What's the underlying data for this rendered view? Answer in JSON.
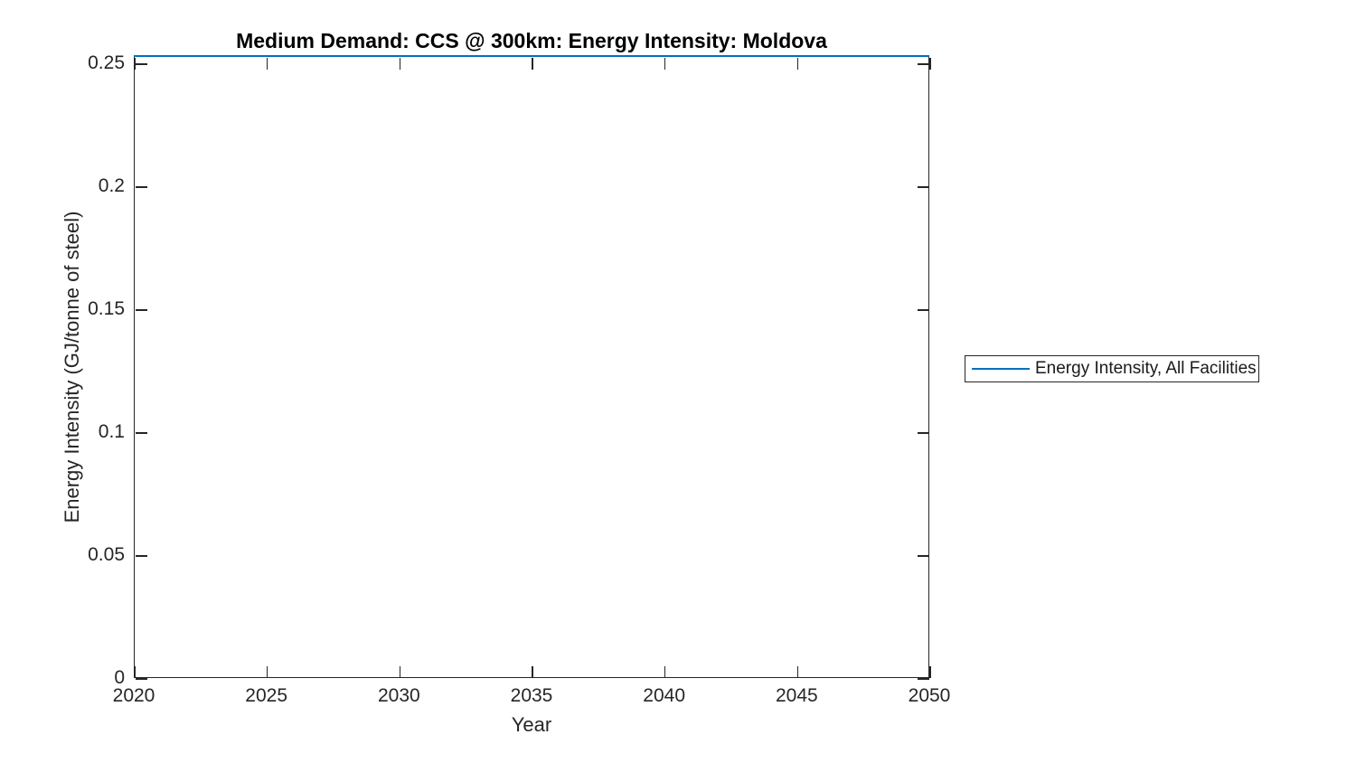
{
  "figure": {
    "background_color": "#ffffff",
    "axis_color": "#262626",
    "title_color": "#000000"
  },
  "chart_data": {
    "type": "line",
    "title": "Medium Demand: CCS @ 300km: Energy Intensity: Moldova",
    "xlabel": "Year",
    "ylabel": "Energy Intensity (GJ/tonne of steel)",
    "xlim": [
      2020,
      2050
    ],
    "ylim": [
      0,
      0.2529
    ],
    "xticks": [
      2020,
      2025,
      2030,
      2035,
      2040,
      2045,
      2050
    ],
    "xtick_labels": [
      "2020",
      "2025",
      "2030",
      "2035",
      "2040",
      "2045",
      "2050"
    ],
    "yticks": [
      0,
      0.05,
      0.1,
      0.15,
      0.2,
      0.25
    ],
    "ytick_labels": [
      "0",
      "0.05",
      "0.1",
      "0.15",
      "0.2",
      "0.25"
    ],
    "grid": false,
    "legend_position": "outside-right",
    "series": [
      {
        "name": "Energy Intensity, All Facilities",
        "color": "#0072BD",
        "line_width": 2,
        "x": [
          2020,
          2050
        ],
        "values": [
          0.2529,
          0.2529
        ]
      }
    ]
  },
  "legend": {
    "entries": [
      {
        "label": "Energy Intensity, All Facilities",
        "color": "#0072BD"
      }
    ]
  }
}
